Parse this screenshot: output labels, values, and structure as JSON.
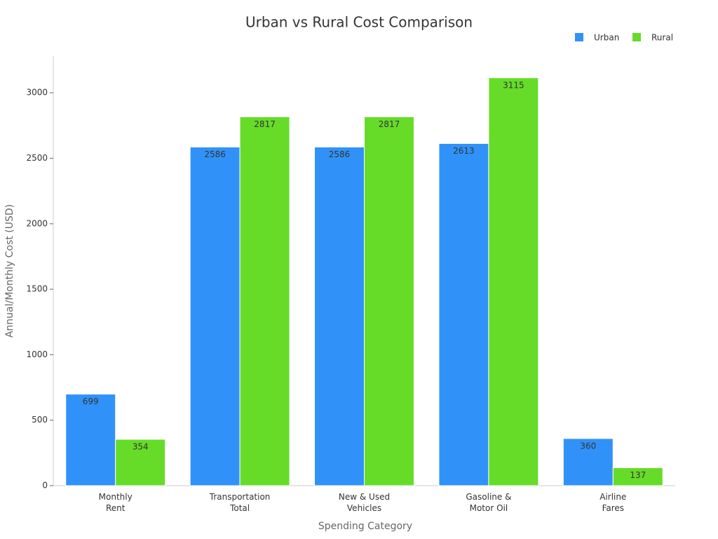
{
  "chart_data": {
    "type": "bar",
    "title": "Urban vs Rural Cost Comparison",
    "x_label": "Spending Category",
    "y_label": "Annual/Monthly Cost (USD)",
    "categories": [
      "Monthly\nRent",
      "Transportation\nTotal",
      "New & Used\nVehicles",
      "Gasoline &\nMotor Oil",
      "Airline\nFares"
    ],
    "series": [
      {
        "name": "Urban",
        "color": "#3092f9",
        "values": [
          699,
          2586,
          2586,
          2613,
          360
        ]
      },
      {
        "name": "Rural",
        "color": "#66dc28",
        "values": [
          354,
          2817,
          2817,
          3115,
          137
        ]
      }
    ],
    "ylim": [
      0,
      3280
    ],
    "yticks": [
      0,
      500,
      1000,
      1500,
      2000,
      2500,
      3000
    ],
    "legend": "top-right",
    "data_labels": true
  }
}
